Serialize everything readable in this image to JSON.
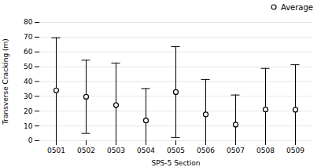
{
  "chart_data": {
    "type": "errorbar",
    "xlabel": "SPS-5 Section",
    "ylabel": "Transverse Cracking (m)",
    "categories": [
      "0501",
      "0502",
      "0503",
      "0504",
      "0505",
      "0506",
      "0507",
      "0508",
      "0509"
    ],
    "series": [
      {
        "name": "Average",
        "marker": "circle",
        "values": [
          34.04,
          29.7,
          24.08,
          13.7,
          32.9,
          17.81,
          10.92,
          21.08,
          20.98
        ],
        "highs": [
          69.57,
          54.45,
          52.5,
          35.26,
          63.61,
          41.39,
          30.92,
          48.88,
          51.34
        ],
        "lows": [
          0.0,
          4.96,
          0.0,
          0.0,
          2.19,
          0.0,
          0.0,
          0.0,
          0.0
        ]
      }
    ],
    "ylim": [
      0,
      80
    ],
    "yticks": [
      0,
      10,
      20,
      30,
      40,
      50,
      60,
      70,
      80
    ],
    "grid": true,
    "legend": "upper right"
  }
}
